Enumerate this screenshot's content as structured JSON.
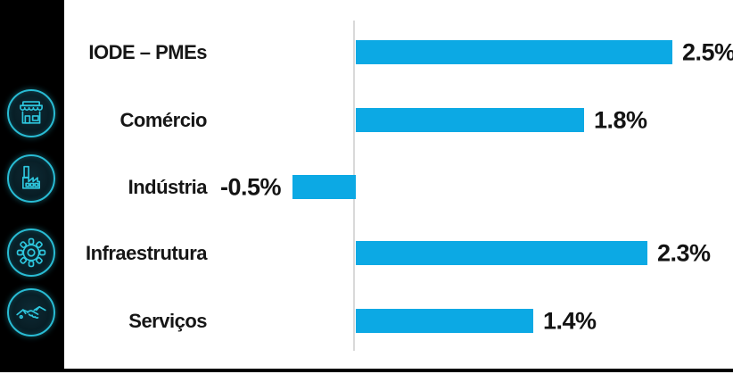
{
  "sidebar": {
    "icons": [
      {
        "name": "storefront-icon"
      },
      {
        "name": "factory-icon"
      },
      {
        "name": "gear-icon"
      },
      {
        "name": "handshake-icon"
      }
    ]
  },
  "colors": {
    "bar_blue": "#0CA9E4",
    "icon_cyan": "#2EC7DE",
    "sidebar_black": "#000000",
    "axis_gray": "#D9D9D9",
    "text": "#131313"
  },
  "chart_data": {
    "type": "bar",
    "orientation": "horizontal",
    "title": "",
    "xlabel": "",
    "ylabel": "",
    "grid": false,
    "legend": false,
    "categories": [
      "IODE – PMEs",
      "Comércio",
      "Indústria",
      "Infraestrutura",
      "Serviços"
    ],
    "values": [
      2.5,
      1.8,
      -0.5,
      2.3,
      1.4
    ],
    "value_labels": [
      "2.5%",
      "1.8%",
      "-0.5%",
      "2.3%",
      "1.4%"
    ],
    "unit": "%",
    "xlim": [
      -0.75,
      3.0
    ],
    "bar_color": "#0CA9E4",
    "axis_color": "#D9D9D9"
  }
}
